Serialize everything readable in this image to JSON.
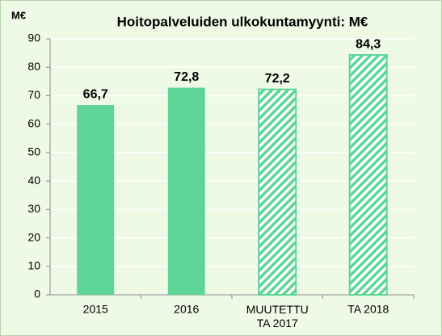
{
  "chart_data": {
    "type": "bar",
    "title": "Hoitopalveluiden ulkokuntamyynti: M€",
    "y_label": "M€",
    "categories": [
      "2015",
      "2016",
      "MUUTETTU\nTA 2017",
      "TA 2018"
    ],
    "values": [
      66.7,
      72.8,
      72.2,
      84.3
    ],
    "value_labels": [
      "66,7",
      "72,8",
      "72,2",
      "84,3"
    ],
    "hatched": [
      false,
      false,
      true,
      true
    ],
    "color": "#5cd596",
    "ylim": [
      0,
      90
    ],
    "yticks": [
      0,
      10,
      20,
      30,
      40,
      50,
      60,
      70,
      80,
      90
    ],
    "grid": true
  }
}
